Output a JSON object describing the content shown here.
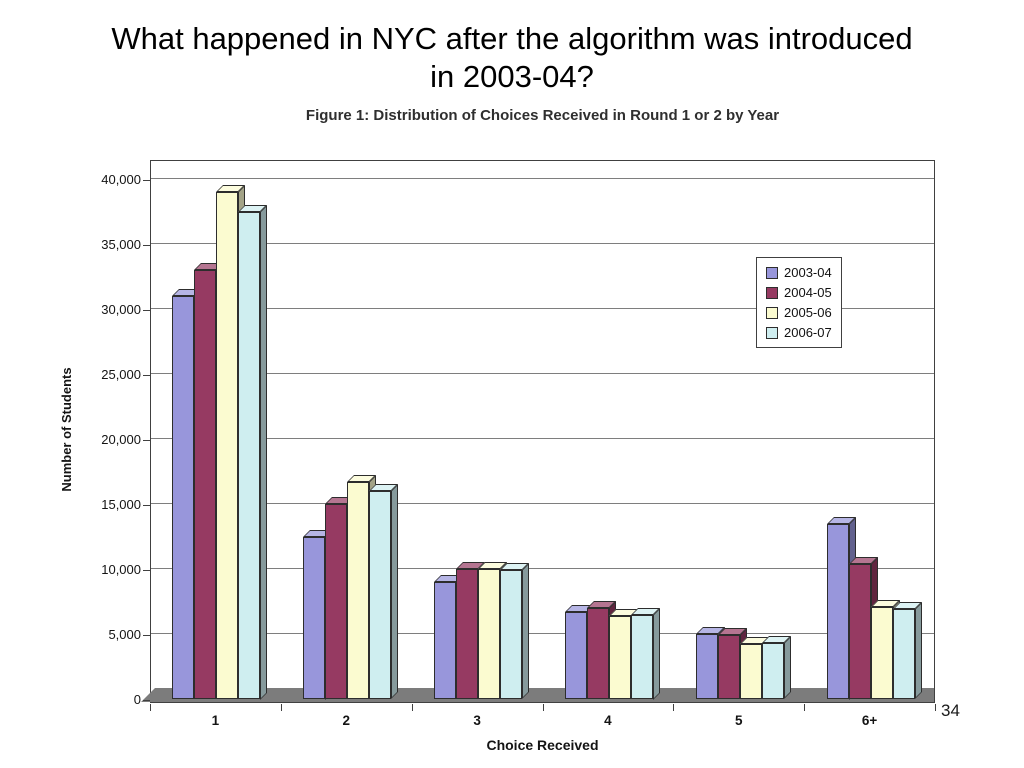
{
  "slide": {
    "title_line1": "What happened in NYC after the algorithm was introduced",
    "title_line2": "in 2003-04?",
    "page_number": "34"
  },
  "chart_data": {
    "type": "bar",
    "title": "Figure 1: Distribution of Choices Received in Round 1 or 2 by Year",
    "xlabel": "Choice Received",
    "ylabel": "Number of Students",
    "categories": [
      "1",
      "2",
      "3",
      "4",
      "5",
      "6+"
    ],
    "series": [
      {
        "name": "2003-04",
        "color": "#9896db",
        "values": [
          31000,
          12500,
          9000,
          6700,
          5000,
          13500
        ]
      },
      {
        "name": "2004-05",
        "color": "#963a62",
        "values": [
          33000,
          15000,
          10000,
          7000,
          4900,
          10400
        ]
      },
      {
        "name": "2005-06",
        "color": "#fbfbd0",
        "values": [
          39000,
          16700,
          10000,
          6400,
          4200,
          7100
        ]
      },
      {
        "name": "2006-07",
        "color": "#cfeef0",
        "values": [
          37500,
          16000,
          9900,
          6500,
          4300,
          6900
        ]
      }
    ],
    "ylim": [
      0,
      40000
    ],
    "ytick_step": 5000,
    "y_ticks": [
      "0",
      "5,000",
      "10,000",
      "15,000",
      "20,000",
      "25,000",
      "30,000",
      "35,000",
      "40,000"
    ],
    "legend_position": "top-right",
    "grid": true,
    "grid_color": "#7e7e7e"
  }
}
